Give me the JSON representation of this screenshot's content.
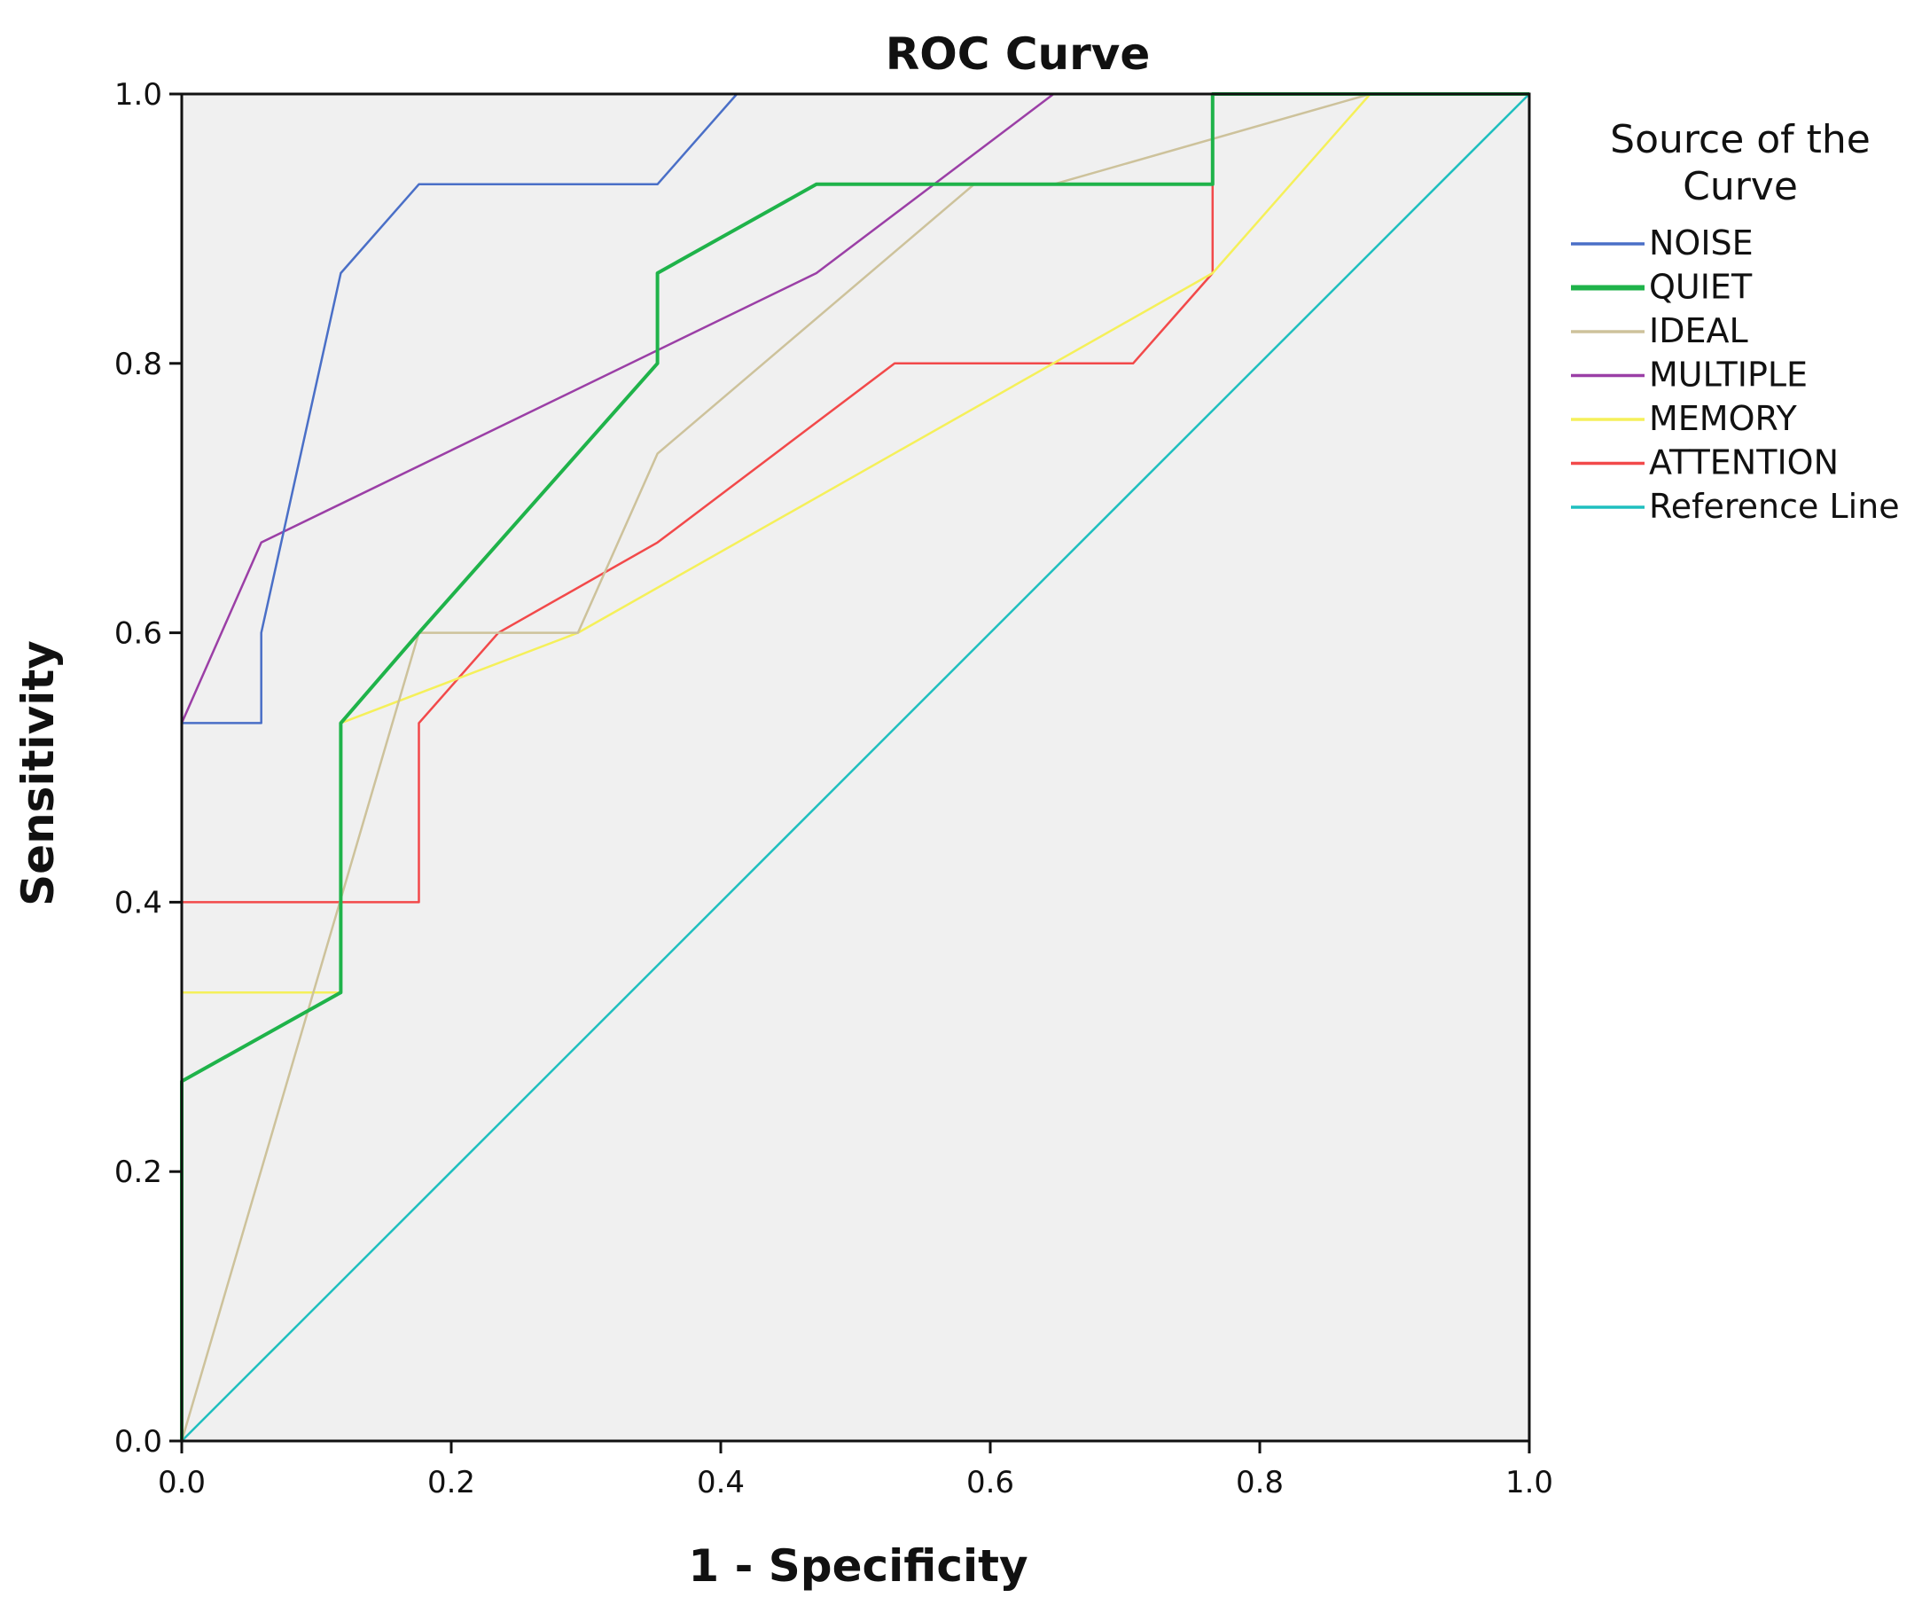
{
  "chart_data": {
    "type": "line",
    "title": "ROC Curve",
    "xlabel": "1 - Specificity",
    "ylabel": "Sensitivity",
    "xlim": [
      0,
      1
    ],
    "ylim": [
      0,
      1
    ],
    "x_ticks": [
      "0.0",
      "0.2",
      "0.4",
      "0.6",
      "0.8",
      "1.0"
    ],
    "y_ticks": [
      "0.0",
      "0.2",
      "0.4",
      "0.6",
      "0.8",
      "1.0"
    ],
    "grid": false,
    "background": "#f0f0f0",
    "legend": {
      "title": "Source of the Curve",
      "position": "right"
    },
    "series": [
      {
        "name": "NOISE",
        "color": "#4a6fc7",
        "points": [
          [
            0,
            0
          ],
          [
            0,
            0.533
          ],
          [
            0.059,
            0.533
          ],
          [
            0.059,
            0.6
          ],
          [
            0.118,
            0.867
          ],
          [
            0.176,
            0.933
          ],
          [
            0.353,
            0.933
          ],
          [
            0.412,
            1.0
          ],
          [
            1.0,
            1.0
          ]
        ]
      },
      {
        "name": "QUIET",
        "color": "#1fb34a",
        "points": [
          [
            0,
            0
          ],
          [
            0,
            0.267
          ],
          [
            0.118,
            0.333
          ],
          [
            0.118,
            0.533
          ],
          [
            0.176,
            0.6
          ],
          [
            0.353,
            0.8
          ],
          [
            0.353,
            0.867
          ],
          [
            0.471,
            0.933
          ],
          [
            0.765,
            0.933
          ],
          [
            0.765,
            1.0
          ],
          [
            1.0,
            1.0
          ]
        ]
      },
      {
        "name": "IDEAL",
        "color": "#cdc29b",
        "points": [
          [
            0,
            0
          ],
          [
            0.176,
            0.6
          ],
          [
            0.294,
            0.6
          ],
          [
            0.353,
            0.733
          ],
          [
            0.588,
            0.933
          ],
          [
            0.647,
            0.933
          ],
          [
            0.882,
            1.0
          ],
          [
            1.0,
            1.0
          ]
        ]
      },
      {
        "name": "MULTIPLE",
        "color": "#9b3fa6",
        "points": [
          [
            0,
            0
          ],
          [
            0,
            0.533
          ],
          [
            0.059,
            0.667
          ],
          [
            0.471,
            0.867
          ],
          [
            0.647,
            1.0
          ],
          [
            1.0,
            1.0
          ]
        ]
      },
      {
        "name": "MEMORY",
        "color": "#f5f05a",
        "points": [
          [
            0,
            0
          ],
          [
            0,
            0.333
          ],
          [
            0.118,
            0.333
          ],
          [
            0.118,
            0.533
          ],
          [
            0.294,
            0.6
          ],
          [
            0.765,
            0.867
          ],
          [
            0.882,
            1.0
          ],
          [
            1.0,
            1.0
          ]
        ]
      },
      {
        "name": "ATTENTION",
        "color": "#f2494a",
        "points": [
          [
            0,
            0
          ],
          [
            0,
            0.4
          ],
          [
            0.176,
            0.4
          ],
          [
            0.176,
            0.533
          ],
          [
            0.235,
            0.6
          ],
          [
            0.353,
            0.667
          ],
          [
            0.529,
            0.8
          ],
          [
            0.706,
            0.8
          ],
          [
            0.765,
            0.867
          ],
          [
            0.765,
            1.0
          ],
          [
            1.0,
            1.0
          ]
        ]
      },
      {
        "name": "Reference Line",
        "color": "#1fbfbf",
        "points": [
          [
            0,
            0
          ],
          [
            1,
            1
          ]
        ]
      }
    ]
  }
}
